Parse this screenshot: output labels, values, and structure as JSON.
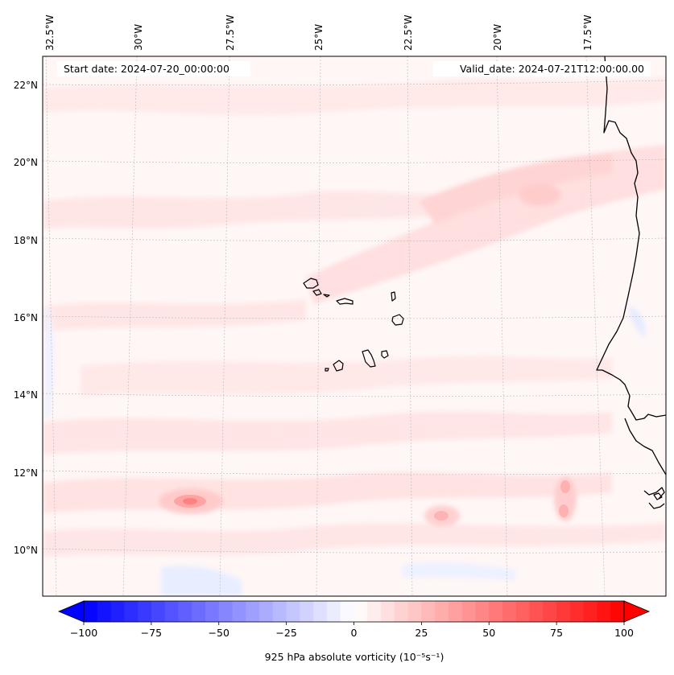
{
  "map": {
    "start_label": "Start date: 2024-07-20_00:00:00",
    "valid_label": "Valid_date: 2024-07-21T12:00:00.00",
    "lon_ticks": [
      "32.5°W",
      "30°W",
      "27.5°W",
      "25°W",
      "22.5°W",
      "20°W",
      "17.5°W"
    ],
    "lat_ticks": [
      "22°N",
      "20°N",
      "18°N",
      "16°N",
      "14°N",
      "12°N",
      "10°N"
    ],
    "coastline_color": "#000000",
    "background_color": "#fff6f6"
  },
  "colorbar": {
    "min": -100,
    "max": 100,
    "step": 5,
    "ticks": [
      {
        "value": -100,
        "label": "−100"
      },
      {
        "value": -75,
        "label": "−75"
      },
      {
        "value": -50,
        "label": "−50"
      },
      {
        "value": -25,
        "label": "−25"
      },
      {
        "value": 0,
        "label": "0"
      },
      {
        "value": 25,
        "label": "25"
      },
      {
        "value": 50,
        "label": "50"
      },
      {
        "value": 75,
        "label": "75"
      },
      {
        "value": 100,
        "label": "100"
      }
    ],
    "label": "925 hPa absolute vorticity (10⁻⁵s⁻¹)",
    "cmap_low": "#0000ff",
    "cmap_mid": "#ffffff",
    "cmap_high": "#ff0000"
  }
}
